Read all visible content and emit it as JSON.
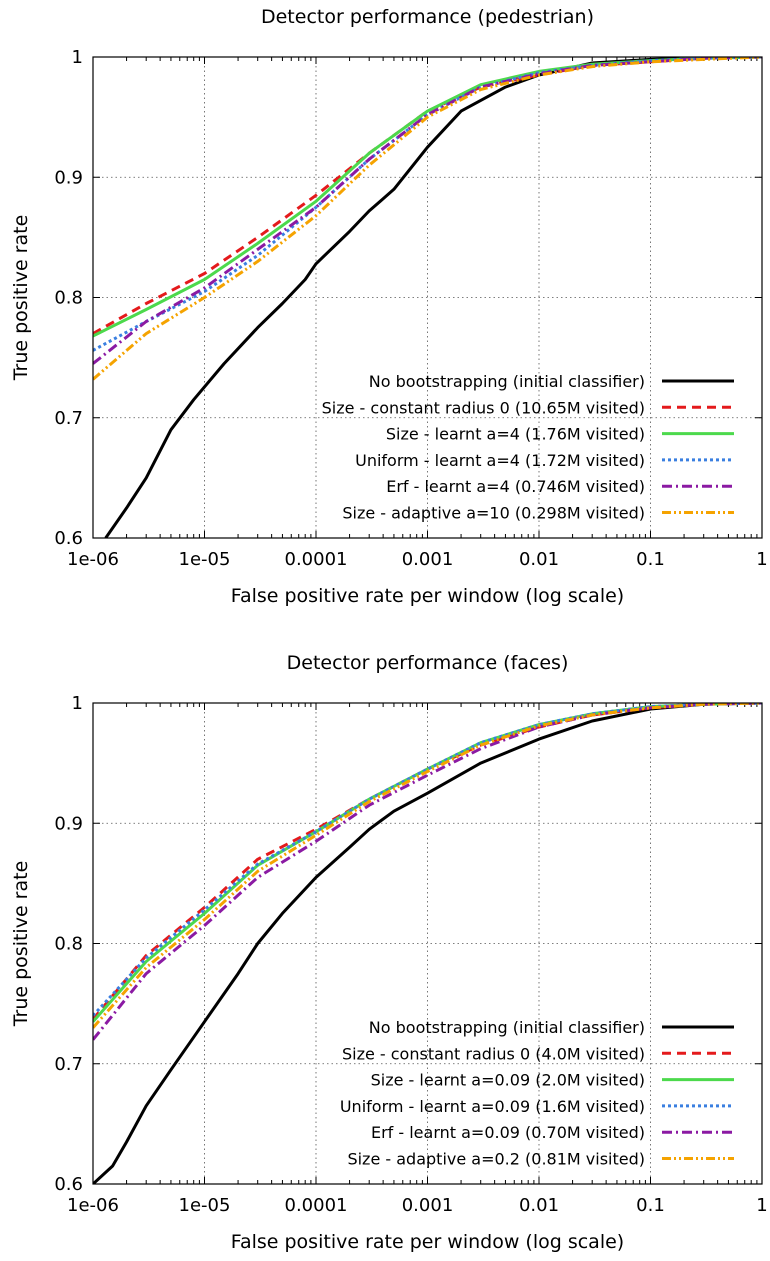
{
  "chart_data": [
    {
      "type": "line",
      "title": "Detector performance (pedestrian)",
      "xlabel": "False positive rate per window (log scale)",
      "ylabel": "True positive rate",
      "xscale": "log",
      "xlim": [
        1e-06,
        1
      ],
      "ylim": [
        0.6,
        1
      ],
      "xticks": [
        "1e-06",
        "1e-05",
        "0.0001",
        "0.001",
        "0.01",
        "0.1",
        "1"
      ],
      "yticks": [
        "0.6",
        "0.7",
        "0.8",
        "0.9",
        "1"
      ],
      "grid": true,
      "legend_position": "bottom-right",
      "series": [
        {
          "name": "No bootstrapping (initial classifier)",
          "color": "#000000",
          "dash": "solid",
          "x": [
            1.3e-06,
            2e-06,
            3e-06,
            5e-06,
            8e-06,
            1.5e-05,
            3e-05,
            5e-05,
            8e-05,
            0.0001,
            0.0002,
            0.0003,
            0.0005,
            0.001,
            0.002,
            0.005,
            0.01,
            0.03,
            0.1,
            0.4,
            1
          ],
          "y": [
            0.6,
            0.625,
            0.65,
            0.69,
            0.715,
            0.745,
            0.775,
            0.795,
            0.815,
            0.828,
            0.855,
            0.872,
            0.89,
            0.925,
            0.955,
            0.975,
            0.985,
            0.995,
            0.998,
            1.0,
            1.0
          ]
        },
        {
          "name": "Size - constant radius 0 (10.65M visited)",
          "color": "#e41a1c",
          "dash": "dashed",
          "x": [
            1e-06,
            3e-06,
            1e-05,
            3e-05,
            0.0001,
            0.0003,
            0.001,
            0.003,
            0.01,
            0.03,
            0.1,
            0.3,
            1
          ],
          "y": [
            0.77,
            0.795,
            0.82,
            0.85,
            0.885,
            0.92,
            0.955,
            0.975,
            0.985,
            0.993,
            0.996,
            0.999,
            1.0
          ]
        },
        {
          "name": "Size - learnt a=4 (1.76M visited)",
          "color": "#4cd94c",
          "dash": "solid",
          "x": [
            1e-06,
            3e-06,
            1e-05,
            3e-05,
            0.0001,
            0.0003,
            0.001,
            0.003,
            0.01,
            0.03,
            0.1,
            0.3,
            1
          ],
          "y": [
            0.768,
            0.79,
            0.815,
            0.845,
            0.88,
            0.92,
            0.955,
            0.977,
            0.988,
            0.994,
            0.997,
            0.999,
            1.0
          ]
        },
        {
          "name": "Uniform - learnt a=4 (1.72M visited)",
          "color": "#3a7fe0",
          "dash": "dotted",
          "x": [
            1e-06,
            3e-06,
            1e-05,
            3e-05,
            0.0001,
            0.0003,
            0.001,
            0.003,
            0.01,
            0.03,
            0.1,
            0.3,
            1
          ],
          "y": [
            0.756,
            0.78,
            0.805,
            0.835,
            0.875,
            0.915,
            0.952,
            0.975,
            0.987,
            0.993,
            0.997,
            0.999,
            1.0
          ]
        },
        {
          "name": "Erf - learnt a=4 (0.746M visited)",
          "color": "#8b1aa3",
          "dash": "dashdot",
          "x": [
            1e-06,
            3e-06,
            1e-05,
            3e-05,
            0.0001,
            0.0003,
            0.001,
            0.003,
            0.01,
            0.03,
            0.1,
            0.3,
            1
          ],
          "y": [
            0.745,
            0.78,
            0.808,
            0.84,
            0.875,
            0.915,
            0.952,
            0.975,
            0.986,
            0.993,
            0.996,
            0.999,
            1.0
          ]
        },
        {
          "name": "Size - adaptive a=10 (0.298M visited)",
          "color": "#f5a300",
          "dash": "dashdotdot",
          "x": [
            1e-06,
            3e-06,
            1e-05,
            3e-05,
            0.0001,
            0.0003,
            0.001,
            0.003,
            0.01,
            0.03,
            0.1,
            0.3,
            1
          ],
          "y": [
            0.732,
            0.77,
            0.8,
            0.83,
            0.868,
            0.91,
            0.95,
            0.973,
            0.985,
            0.992,
            0.996,
            0.998,
            1.0
          ]
        }
      ]
    },
    {
      "type": "line",
      "title": "Detector performance (faces)",
      "xlabel": "False positive rate per window (log scale)",
      "ylabel": "True positive rate",
      "xscale": "log",
      "xlim": [
        1e-06,
        1
      ],
      "ylim": [
        0.6,
        1
      ],
      "xticks": [
        "1e-06",
        "1e-05",
        "0.0001",
        "0.001",
        "0.01",
        "0.1",
        "1"
      ],
      "yticks": [
        "0.6",
        "0.7",
        "0.8",
        "0.9",
        "1"
      ],
      "grid": true,
      "legend_position": "bottom-right",
      "series": [
        {
          "name": "No bootstrapping (initial classifier)",
          "color": "#000000",
          "dash": "solid",
          "x": [
            1e-06,
            1.5e-06,
            2e-06,
            3e-06,
            5e-06,
            1e-05,
            2e-05,
            3e-05,
            5e-05,
            0.0001,
            0.0002,
            0.0003,
            0.0005,
            0.001,
            0.003,
            0.01,
            0.03,
            0.1,
            0.3,
            1
          ],
          "y": [
            0.6,
            0.615,
            0.635,
            0.665,
            0.695,
            0.735,
            0.775,
            0.8,
            0.825,
            0.855,
            0.88,
            0.895,
            0.91,
            0.925,
            0.95,
            0.97,
            0.985,
            0.995,
            0.999,
            1.0
          ]
        },
        {
          "name": "Size - constant radius 0 (4.0M visited)",
          "color": "#e41a1c",
          "dash": "dashed",
          "x": [
            1e-06,
            3e-06,
            1e-05,
            3e-05,
            0.0001,
            0.0003,
            0.001,
            0.003,
            0.01,
            0.03,
            0.1,
            0.3,
            1
          ],
          "y": [
            0.737,
            0.79,
            0.83,
            0.87,
            0.895,
            0.92,
            0.945,
            0.965,
            0.98,
            0.99,
            0.996,
            0.999,
            1.0
          ]
        },
        {
          "name": "Size - learnt a=0.09 (2.0M visited)",
          "color": "#4cd94c",
          "dash": "solid",
          "x": [
            1e-06,
            3e-06,
            1e-05,
            3e-05,
            0.0001,
            0.0003,
            0.001,
            0.003,
            0.01,
            0.03,
            0.1,
            0.3,
            1
          ],
          "y": [
            0.735,
            0.785,
            0.825,
            0.865,
            0.893,
            0.92,
            0.945,
            0.967,
            0.982,
            0.991,
            0.997,
            0.999,
            1.0
          ]
        },
        {
          "name": "Uniform - learnt a=0.09 (1.6M visited)",
          "color": "#3a7fe0",
          "dash": "dotted",
          "x": [
            1e-06,
            3e-06,
            1e-05,
            3e-05,
            0.0001,
            0.0003,
            0.001,
            0.003,
            0.01,
            0.03,
            0.1,
            0.3,
            1
          ],
          "y": [
            0.74,
            0.788,
            0.828,
            0.866,
            0.893,
            0.92,
            0.945,
            0.967,
            0.982,
            0.991,
            0.997,
            0.999,
            1.0
          ]
        },
        {
          "name": "Erf - learnt a=0.09 (0.70M visited)",
          "color": "#8b1aa3",
          "dash": "dashdot",
          "x": [
            1e-06,
            3e-06,
            1e-05,
            3e-05,
            0.0001,
            0.0003,
            0.001,
            0.003,
            0.01,
            0.03,
            0.1,
            0.3,
            1
          ],
          "y": [
            0.72,
            0.775,
            0.815,
            0.855,
            0.885,
            0.915,
            0.94,
            0.962,
            0.98,
            0.99,
            0.996,
            0.999,
            1.0
          ]
        },
        {
          "name": "Size - adaptive a=0.2 (0.81M visited)",
          "color": "#f5a300",
          "dash": "dashdotdot",
          "x": [
            1e-06,
            3e-06,
            1e-05,
            3e-05,
            0.0001,
            0.0003,
            0.001,
            0.003,
            0.01,
            0.03,
            0.1,
            0.3,
            1
          ],
          "y": [
            0.73,
            0.78,
            0.82,
            0.86,
            0.89,
            0.918,
            0.943,
            0.965,
            0.981,
            0.99,
            0.996,
            0.999,
            1.0
          ]
        }
      ]
    }
  ]
}
